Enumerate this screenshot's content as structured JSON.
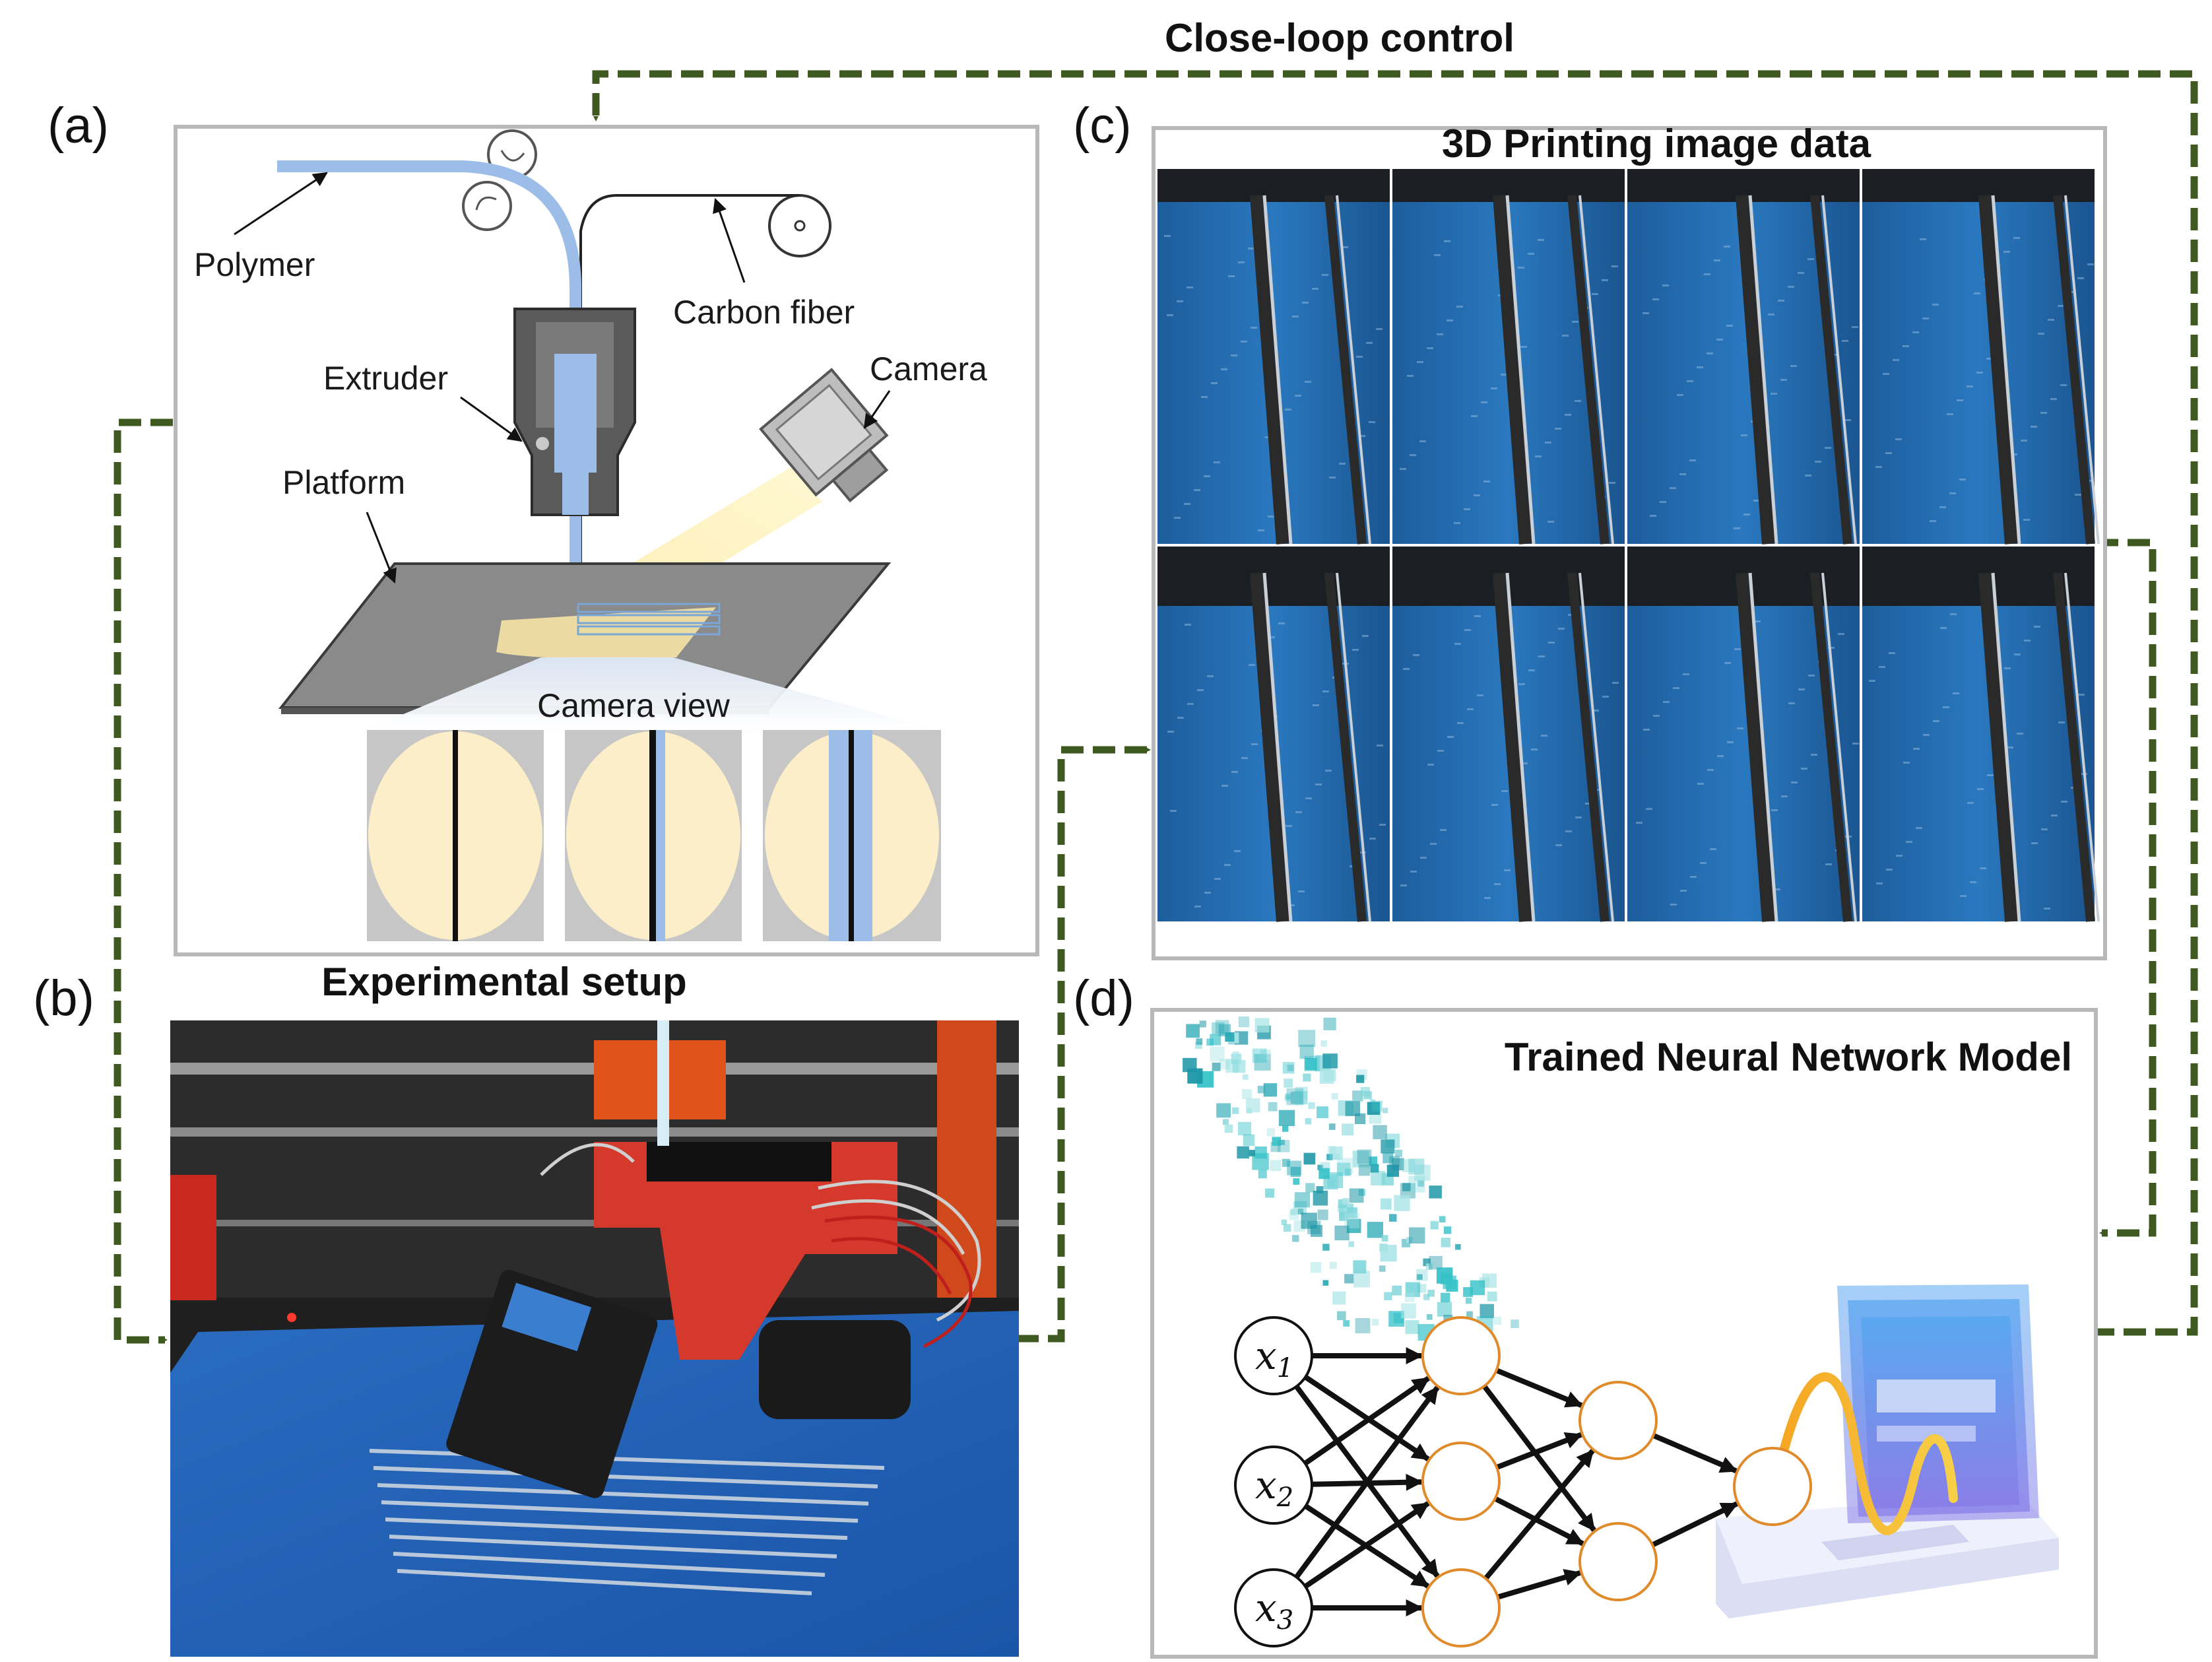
{
  "figure": {
    "loop_title": "Close-loop control",
    "panel_a": {
      "letter": "(a)",
      "labels": {
        "polymer": "Polymer",
        "carbon_fiber": "Carbon fiber",
        "extruder": "Extruder",
        "camera": "Camera",
        "platform": "Platform",
        "camera_view": "Camera view"
      }
    },
    "panel_b": {
      "letter": "(b)",
      "title": "Experimental setup"
    },
    "panel_c": {
      "letter": "(c)",
      "title": "3D Printing image data"
    },
    "panel_d": {
      "letter": "(d)",
      "title": "Trained Neural Network Model",
      "inputs": [
        {
          "var": "x",
          "sub": "1"
        },
        {
          "var": "x",
          "sub": "2"
        },
        {
          "var": "x",
          "sub": "3"
        }
      ]
    },
    "colors": {
      "loop_arrow": "#3f5a20",
      "polymer": "#9bbde8",
      "camera_light": "#fbeec4",
      "platform": "#8a8a8a",
      "node_outline": "#e08a2a",
      "print_bed": "#1f62b5"
    }
  }
}
